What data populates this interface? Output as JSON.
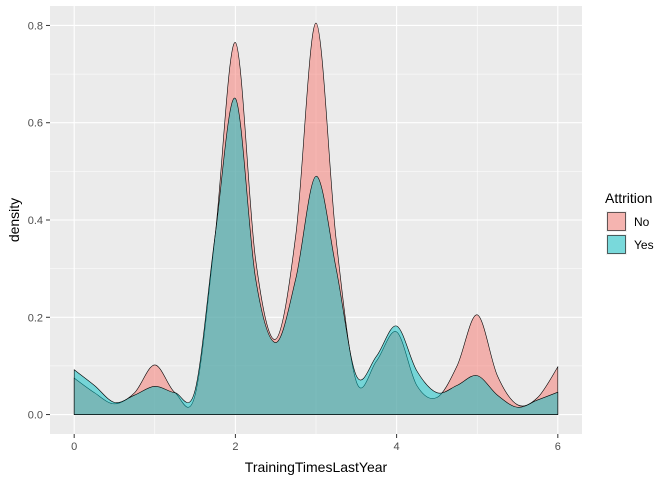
{
  "chart_data": {
    "type": "area",
    "title": "",
    "xlabel": "TrainingTimesLastYear",
    "ylabel": "density",
    "xlim": [
      -0.3,
      6.3
    ],
    "ylim": [
      -0.04,
      0.84
    ],
    "x_ticks": [
      0,
      2,
      4,
      6
    ],
    "y_ticks": [
      0.0,
      0.2,
      0.4,
      0.6,
      0.8
    ],
    "x_tick_labels": [
      "0",
      "2",
      "4",
      "6"
    ],
    "y_tick_labels": [
      "0.0",
      "0.2",
      "0.4",
      "0.6",
      "0.8"
    ],
    "grid": true,
    "legend": {
      "title": "Attrition",
      "position": "right",
      "entries": [
        "No",
        "Yes"
      ]
    },
    "series": [
      {
        "name": "No",
        "color": "#F8766D",
        "fill_opacity": 0.5,
        "x": [
          0,
          0.25,
          0.5,
          0.75,
          1,
          1.25,
          1.5,
          1.75,
          2,
          2.25,
          2.5,
          2.75,
          3,
          3.25,
          3.5,
          3.75,
          4,
          4.25,
          4.5,
          4.75,
          5,
          5.25,
          5.5,
          5.75,
          6
        ],
        "y": [
          0.075,
          0.045,
          0.022,
          0.045,
          0.102,
          0.045,
          0.04,
          0.37,
          0.765,
          0.32,
          0.155,
          0.37,
          0.805,
          0.36,
          0.068,
          0.11,
          0.17,
          0.06,
          0.035,
          0.1,
          0.205,
          0.08,
          0.02,
          0.035,
          0.098
        ]
      },
      {
        "name": "Yes",
        "color": "#00BFC4",
        "fill_opacity": 0.5,
        "x": [
          0,
          0.25,
          0.5,
          0.75,
          1,
          1.25,
          1.5,
          1.75,
          2,
          2.25,
          2.5,
          2.75,
          3,
          3.25,
          3.5,
          3.75,
          4,
          4.25,
          4.5,
          4.75,
          5,
          5.25,
          5.5,
          5.75,
          6
        ],
        "y": [
          0.092,
          0.06,
          0.025,
          0.04,
          0.058,
          0.045,
          0.05,
          0.37,
          0.65,
          0.28,
          0.148,
          0.28,
          0.49,
          0.3,
          0.08,
          0.12,
          0.182,
          0.09,
          0.045,
          0.06,
          0.08,
          0.04,
          0.015,
          0.03,
          0.046
        ]
      }
    ]
  }
}
